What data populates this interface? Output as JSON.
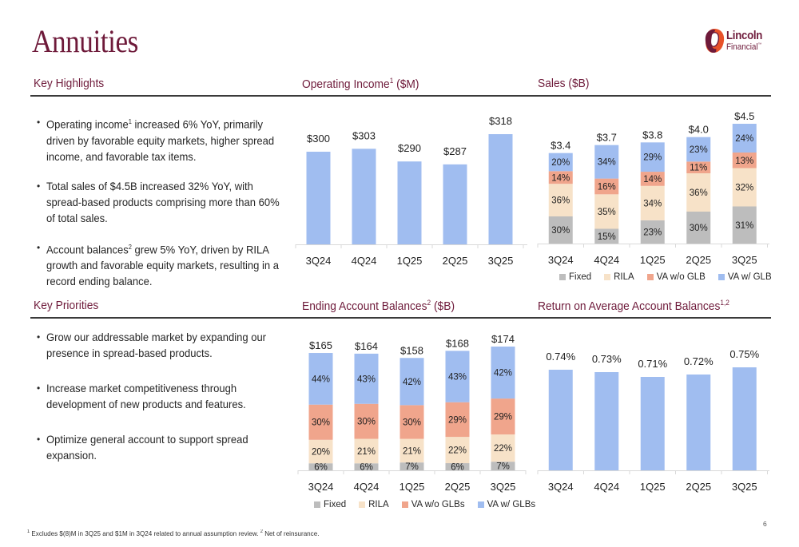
{
  "page": {
    "title": "Annuities",
    "page_number": "6",
    "footnote": {
      "part1_sup": "1",
      "part1": " Excludes $(8)M in 3Q25 and $1M in 3Q24 related to annual assumption review. ",
      "part2_sup": "2",
      "part2": " Net of reinsurance."
    }
  },
  "logo": {
    "line1": "Lincoln",
    "line2": "Financial",
    "tm": "™"
  },
  "colors": {
    "brand": "#6e1a3a",
    "fixed": "#bdbdbd",
    "rila": "#f7e2c8",
    "va_wo_glb": "#f0a58c",
    "va_w_glb": "#a0bdf0",
    "bar": "#a0bdf0"
  },
  "highlights": {
    "heading": "Key Highlights",
    "items": [
      {
        "pre": "Operating income",
        "sup": "1",
        "post": " increased 6% YoY, primarily driven by favorable equity markets, higher spread income, and favorable tax items."
      },
      {
        "pre": "Total sales of $4.5B increased 32% YoY, with spread-based products comprising more than 60% of total sales.",
        "sup": "",
        "post": ""
      },
      {
        "pre": "Account balances",
        "sup": "2",
        "post": " grew 5% YoY, driven by RILA growth and favorable equity markets, resulting in a record ending balance."
      }
    ]
  },
  "priorities": {
    "heading": "Key Priorities",
    "items": [
      "Grow our addressable market by expanding our presence in spread-based products.",
      "Increase market competitiveness through development of new products and features.",
      "Optimize general account to support spread expansion."
    ]
  },
  "chart_data": [
    {
      "id": "operating-income",
      "type": "bar",
      "title": "Operating Income",
      "title_sup": "1",
      "title_suffix": " ($M)",
      "categories": [
        "3Q24",
        "4Q24",
        "1Q25",
        "2Q25",
        "3Q25"
      ],
      "values": [
        300,
        303,
        290,
        287,
        318
      ],
      "value_labels": [
        "$300",
        "$303",
        "$290",
        "$287",
        "$318"
      ],
      "xlabel": "",
      "ylabel": "",
      "ylim": [
        205,
        318
      ],
      "grid": false
    },
    {
      "id": "sales",
      "type": "bar",
      "stacked": true,
      "title": "Sales",
      "title_sup": "",
      "title_suffix": " ($B)",
      "categories": [
        "3Q24",
        "4Q24",
        "1Q25",
        "2Q25",
        "3Q25"
      ],
      "totals": [
        3.4,
        3.7,
        3.8,
        4.0,
        4.5
      ],
      "total_labels": [
        "$3.4",
        "$3.7",
        "$3.8",
        "$4.0",
        "$4.5"
      ],
      "series": [
        {
          "name": "Fixed",
          "color_key": "fixed",
          "values": [
            30,
            15,
            23,
            30,
            31
          ]
        },
        {
          "name": "RILA",
          "color_key": "rila",
          "values": [
            36,
            35,
            34,
            36,
            32
          ]
        },
        {
          "name": "VA w/o GLB",
          "color_key": "va_wo_glb",
          "values": [
            14,
            16,
            14,
            11,
            13
          ]
        },
        {
          "name": "VA w/ GLB",
          "color_key": "va_w_glb",
          "values": [
            20,
            34,
            29,
            23,
            24
          ]
        }
      ],
      "value_unit": "% of total",
      "ylim": [
        0,
        4.5
      ],
      "legend": "bottom",
      "grid": false
    },
    {
      "id": "ending-account-balances",
      "type": "bar",
      "stacked": true,
      "title": "Ending Account Balances",
      "title_sup": "2",
      "title_suffix": " ($B)",
      "categories": [
        "3Q24",
        "4Q24",
        "1Q25",
        "2Q25",
        "3Q25"
      ],
      "totals": [
        165,
        164,
        158,
        168,
        174
      ],
      "total_labels": [
        "$165",
        "$164",
        "$158",
        "$168",
        "$174"
      ],
      "series": [
        {
          "name": "Fixed",
          "color_key": "fixed",
          "values": [
            6,
            6,
            7,
            6,
            7
          ]
        },
        {
          "name": "RILA",
          "color_key": "rila",
          "values": [
            20,
            21,
            21,
            22,
            22
          ]
        },
        {
          "name": "VA w/o GLBs",
          "color_key": "va_wo_glb",
          "values": [
            30,
            30,
            30,
            29,
            29
          ]
        },
        {
          "name": "VA w/ GLBs",
          "color_key": "va_w_glb",
          "values": [
            44,
            43,
            42,
            43,
            42
          ]
        }
      ],
      "value_unit": "% of total",
      "ylim": [
        0,
        174
      ],
      "legend": "bottom",
      "grid": false
    },
    {
      "id": "return-on-average-account-balances",
      "type": "bar",
      "title": "Return on Average Account Balances",
      "title_sup": "1,2",
      "title_suffix": "",
      "categories": [
        "3Q24",
        "4Q24",
        "1Q25",
        "2Q25",
        "3Q25"
      ],
      "values": [
        0.74,
        0.73,
        0.71,
        0.72,
        0.75
      ],
      "value_labels": [
        "0.74%",
        "0.73%",
        "0.71%",
        "0.72%",
        "0.75%"
      ],
      "ylim": [
        0.32,
        0.75
      ],
      "grid": false
    }
  ]
}
